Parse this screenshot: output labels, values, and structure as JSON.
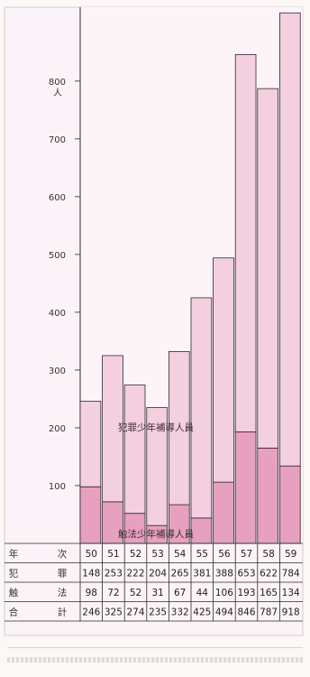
{
  "chart_data": {
    "type": "bar",
    "stacked": true,
    "categories": [
      "50",
      "51",
      "52",
      "53",
      "54",
      "55",
      "56",
      "57",
      "58",
      "59"
    ],
    "series": [
      {
        "name": "犯罪少年補導人員",
        "values": [
          148,
          253,
          222,
          204,
          265,
          381,
          388,
          653,
          622,
          784
        ]
      },
      {
        "name": "触法少年補導人員",
        "values": [
          98,
          72,
          52,
          31,
          67,
          44,
          106,
          193,
          165,
          134
        ]
      }
    ],
    "totals": [
      246,
      325,
      274,
      235,
      332,
      425,
      494,
      846,
      787,
      918
    ],
    "ylim": [
      0,
      920
    ],
    "yticks": [
      "100",
      "200",
      "300",
      "400",
      "500",
      "600",
      "700",
      "800"
    ],
    "yunit": "人",
    "table": {
      "rows": [
        {
          "label": [
            "年",
            "次"
          ],
          "values": [
            "50",
            "51",
            "52",
            "53",
            "54",
            "55",
            "56",
            "57",
            "58",
            "59"
          ]
        },
        {
          "label": [
            "犯",
            "罪"
          ],
          "values": [
            "148",
            "253",
            "222",
            "204",
            "265",
            "381",
            "388",
            "653",
            "622",
            "784"
          ]
        },
        {
          "label": [
            "触",
            "法"
          ],
          "values": [
            "98",
            "72",
            "52",
            "31",
            "67",
            "44",
            "106",
            "193",
            "165",
            "134"
          ]
        },
        {
          "label": [
            "合",
            "計"
          ],
          "values": [
            "246",
            "325",
            "274",
            "235",
            "332",
            "425",
            "494",
            "846",
            "787",
            "918"
          ]
        }
      ]
    },
    "colors": {
      "upper": "#f4cfe0",
      "lower": "#e7a0bf",
      "edge": "#2b2b2b",
      "panel_bg": "#fbf3f7"
    }
  }
}
